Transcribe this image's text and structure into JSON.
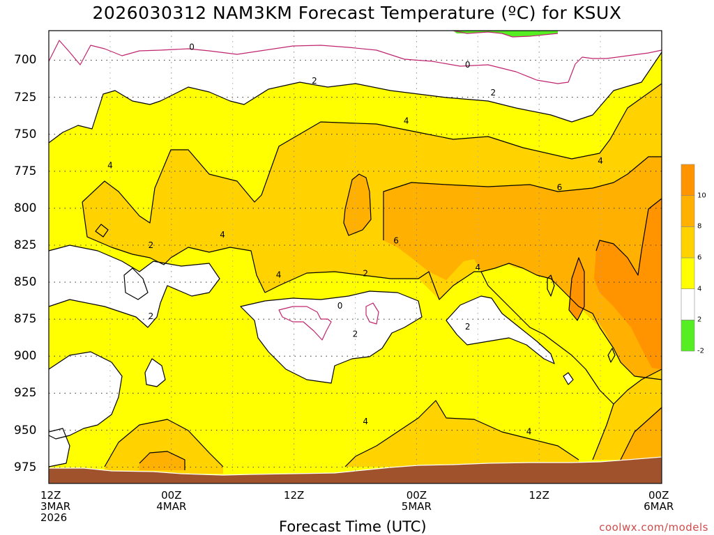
{
  "chart_data": {
    "type": "contour",
    "title": "2026030312 NAM3KM Forecast Temperature (ºC) for KSUX",
    "xlabel": "Forecast Time (UTC)",
    "ylabel": "",
    "credit": "coolwx.com/models",
    "x_ticks": [
      {
        "lines": [
          "12Z",
          "3MAR",
          "2026"
        ],
        "hour": 0
      },
      {
        "lines": [
          "00Z",
          "4MAR"
        ],
        "hour": 12
      },
      {
        "lines": [
          "12Z"
        ],
        "hour": 24
      },
      {
        "lines": [
          "00Z",
          "5MAR"
        ],
        "hour": 36
      },
      {
        "lines": [
          "12Z"
        ],
        "hour": 48
      },
      {
        "lines": [
          "00Z",
          "6MAR"
        ],
        "hour": 60
      }
    ],
    "xlim": [
      0,
      60
    ],
    "y_ticks": [
      700,
      725,
      750,
      775,
      800,
      825,
      850,
      875,
      900,
      925,
      950,
      975
    ],
    "ylim": [
      680,
      986
    ],
    "contour_labels": [
      {
        "text": "0",
        "hour": 14,
        "p": 691
      },
      {
        "text": "0",
        "hour": 41,
        "p": 703
      },
      {
        "text": "2",
        "hour": 26,
        "p": 714
      },
      {
        "text": "2",
        "hour": 43.5,
        "p": 722
      },
      {
        "text": "4",
        "hour": 35,
        "p": 741
      },
      {
        "text": "4",
        "hour": 54,
        "p": 768
      },
      {
        "text": "4",
        "hour": 6,
        "p": 771
      },
      {
        "text": "6",
        "hour": 50,
        "p": 786
      },
      {
        "text": "4",
        "hour": 17,
        "p": 818
      },
      {
        "text": "2",
        "hour": 10,
        "p": 825
      },
      {
        "text": "6",
        "hour": 34,
        "p": 822
      },
      {
        "text": "4",
        "hour": 42,
        "p": 840
      },
      {
        "text": "4",
        "hour": 22.5,
        "p": 845
      },
      {
        "text": "2",
        "hour": 31,
        "p": 844
      },
      {
        "text": "0",
        "hour": 28.5,
        "p": 866
      },
      {
        "text": "2",
        "hour": 10,
        "p": 873
      },
      {
        "text": "2",
        "hour": 41,
        "p": 880
      },
      {
        "text": "2",
        "hour": 30,
        "p": 885
      },
      {
        "text": "4",
        "hour": 31,
        "p": 944
      },
      {
        "text": "4",
        "hour": 47,
        "p": 951
      }
    ],
    "colorbar": {
      "levels": [
        -2,
        2,
        4,
        6,
        8,
        10
      ],
      "colors": [
        "#55ee22",
        "#ffffff",
        "#ffff00",
        "#ffd200",
        "#ffb000",
        "#ff9300"
      ]
    },
    "fill_colors": {
      "t2_4": "#ffff00",
      "t4_6": "#ffd200",
      "t6_8": "#ffb000",
      "t8_10": "#ff9300",
      "below_0": "#55ee22",
      "ground": "#a0522d",
      "contour_0": "#c0246e"
    }
  }
}
